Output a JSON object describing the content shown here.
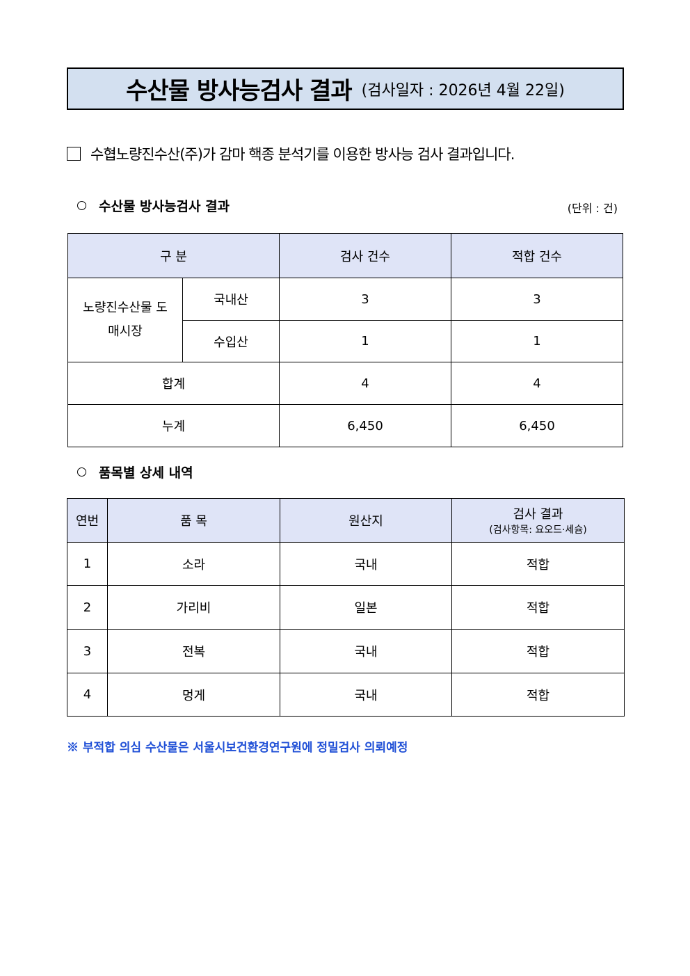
{
  "title": {
    "main": "수산물 방사능검사 결과",
    "date": "(검사일자 : 2026년 4월 22일)"
  },
  "intro": "수협노량진수산(주)가 감마 핵종 분석기를 이용한 방사능 검사 결과입니다.",
  "section1": {
    "title": "수산물 방사능검사 결과",
    "unit": "(단위 : 건)",
    "headers": [
      "구 분",
      "검사 건수",
      "적합 건수"
    ],
    "market": "노량진수산물 도매시장",
    "rows": [
      {
        "label": "국내산",
        "tested": "3",
        "passed": "3"
      },
      {
        "label": "수입산",
        "tested": "1",
        "passed": "1"
      },
      {
        "label": "합계",
        "tested": "4",
        "passed": "4"
      },
      {
        "label": "누계",
        "tested": "6,450",
        "passed": "6,450"
      }
    ]
  },
  "section2": {
    "title": "품목별 상세 내역",
    "headers": [
      "연번",
      "품 목",
      "원산지",
      "검사 결과"
    ],
    "result_sub": "(검사항목: 요오드·세슘)",
    "rows": [
      {
        "no": "1",
        "item": "소라",
        "origin": "국내",
        "result": "적합"
      },
      {
        "no": "2",
        "item": "가리비",
        "origin": "일본",
        "result": "적합"
      },
      {
        "no": "3",
        "item": "전복",
        "origin": "국내",
        "result": "적합"
      },
      {
        "no": "4",
        "item": "멍게",
        "origin": "국내",
        "result": "적합"
      }
    ]
  },
  "note": "※ 부적합 의심 수산물은 서울시보건환경연구원에 정밀검사 의뢰예정",
  "colors": {
    "title_bg": "#d3e0f0",
    "header_bg": "#dfe4f7",
    "note": "#1f4fd6"
  }
}
